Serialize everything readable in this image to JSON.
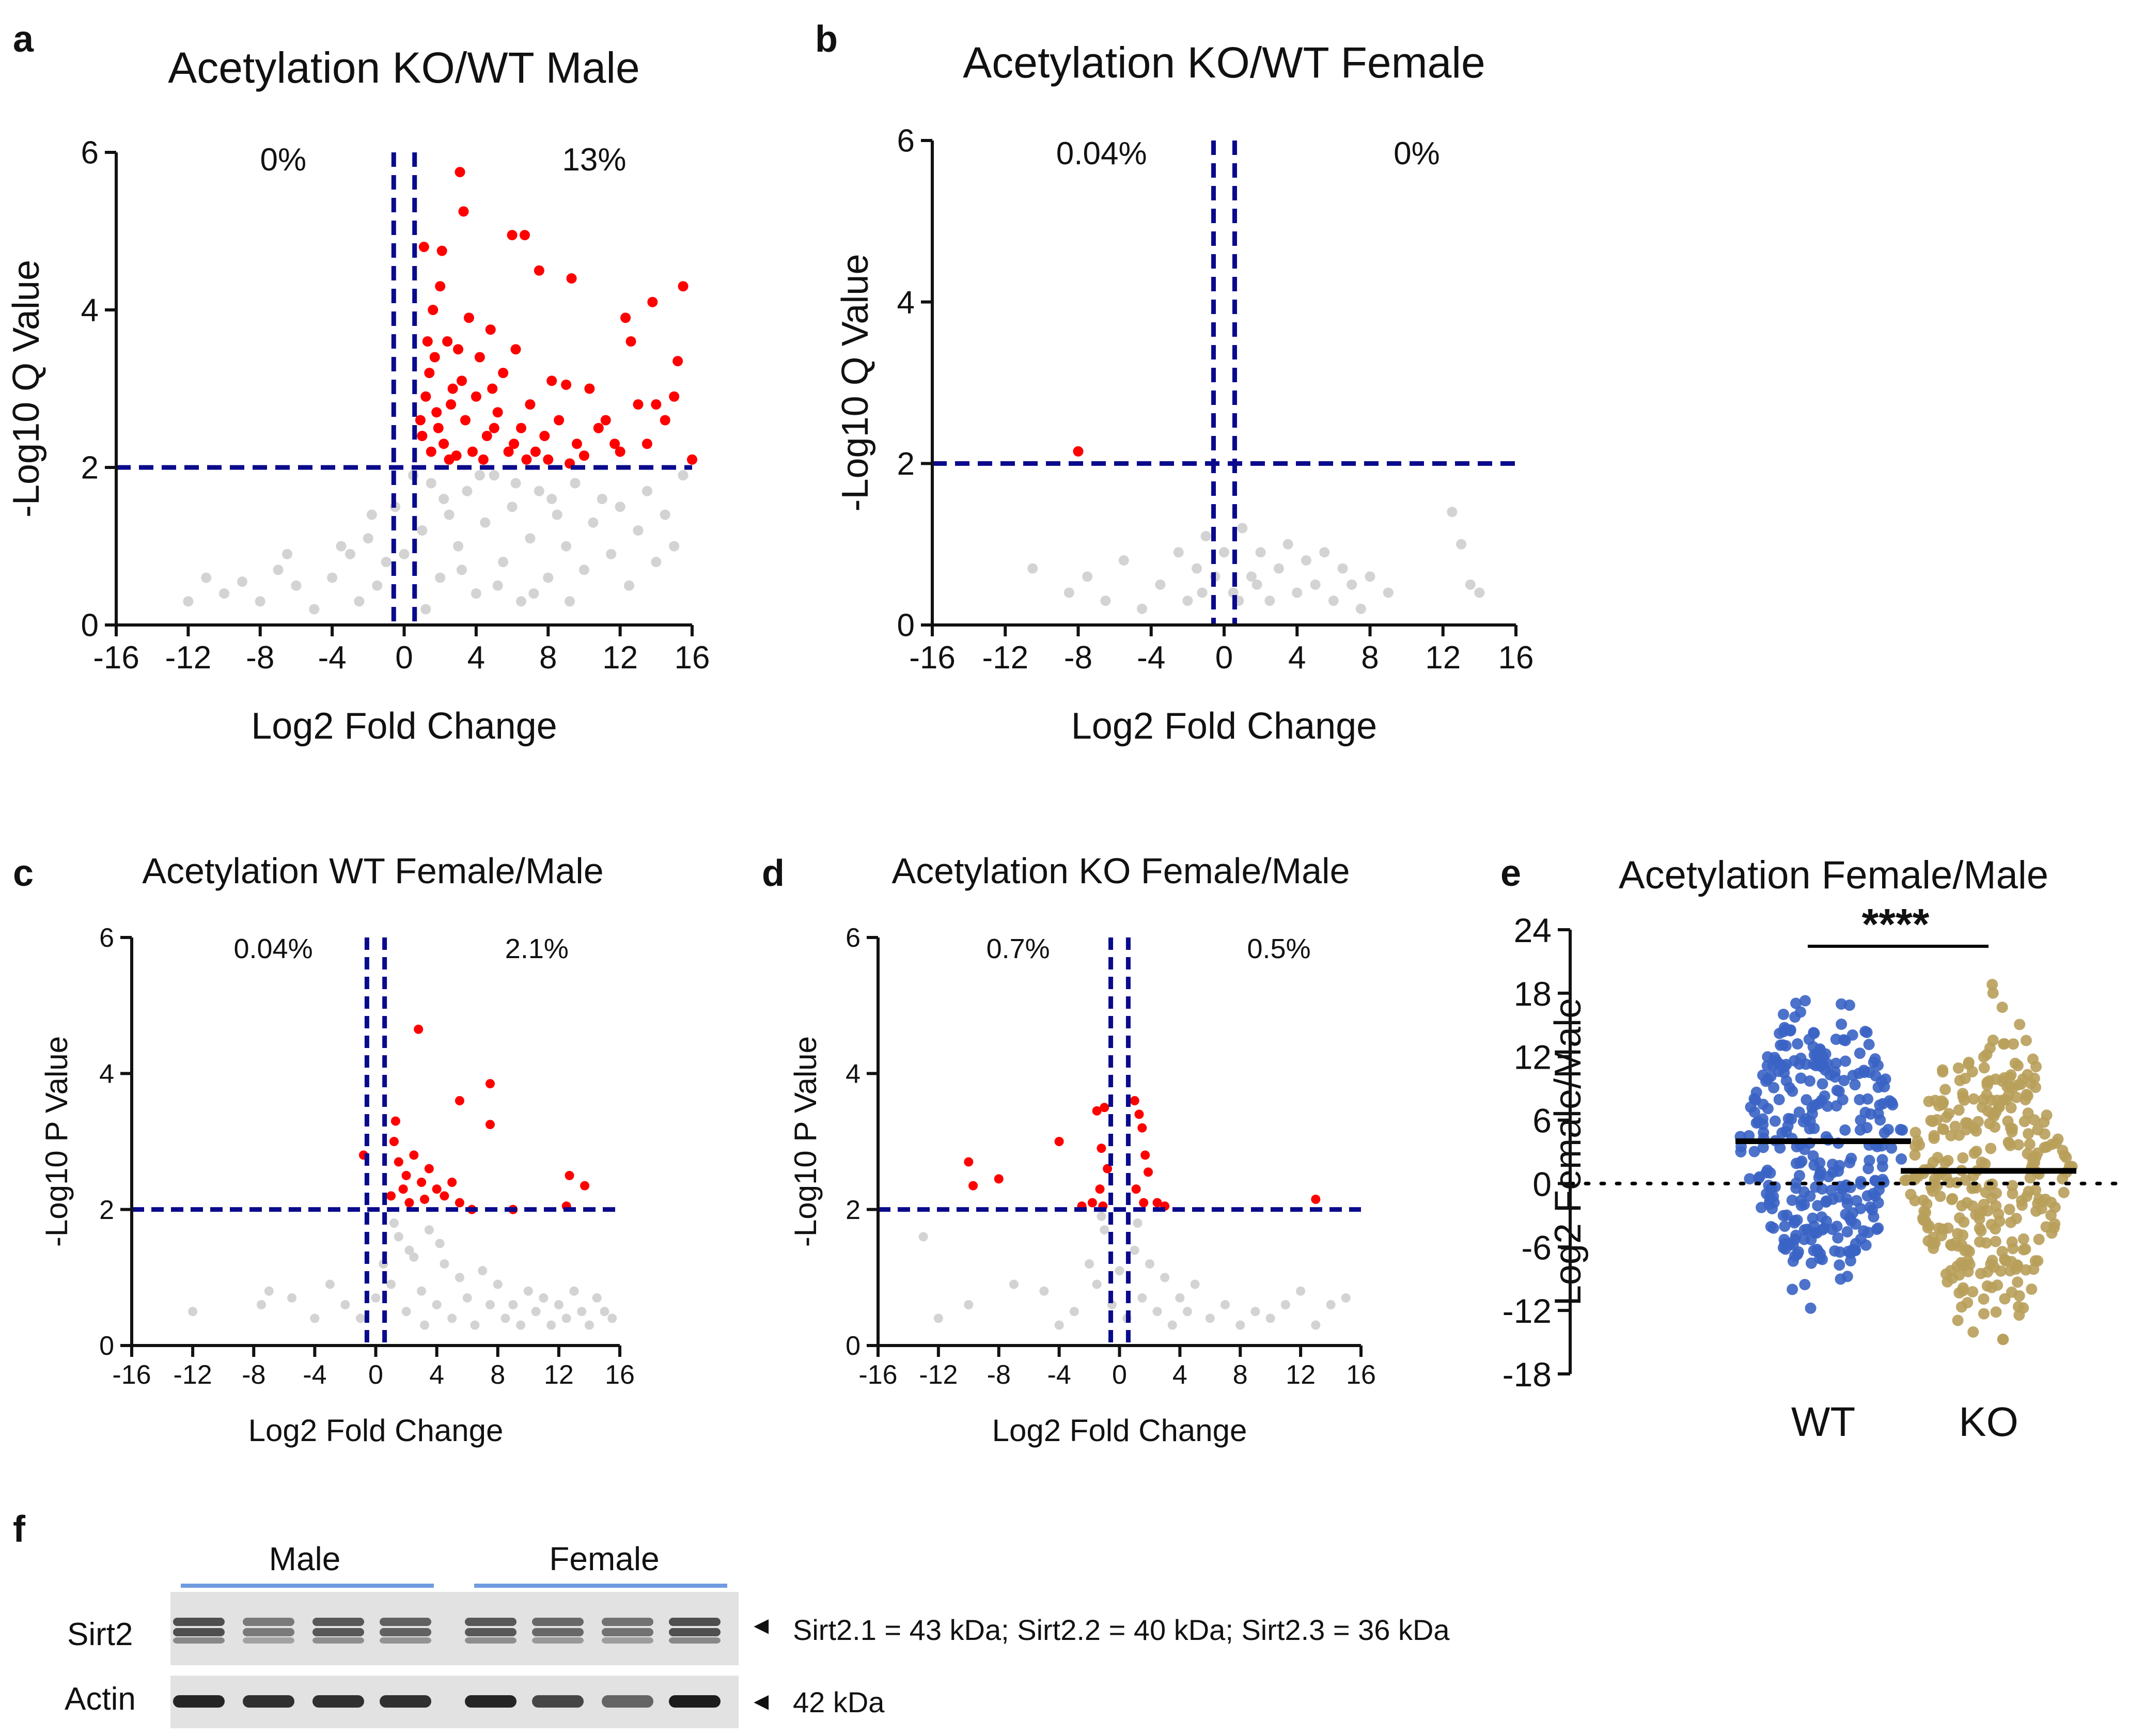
{
  "figure_title": "Acetylation volcano plots, female/male comparison and Sirt2 western blot",
  "colors": {
    "significant": "#ff0000",
    "nonsignificant": "#d3d3d3",
    "threshold": "#0a0a8c",
    "wt": "#3a63c4",
    "ko": "#b89f5a",
    "axis": "#111111"
  },
  "chart_data": [
    {
      "panel": "a",
      "type": "scatter",
      "title": "Acetylation KO/WT Male",
      "xlabel": "Log2 Fold Change",
      "ylabel": "-Log10 Q Value",
      "xlim": [
        -16,
        16
      ],
      "ylim": [
        0,
        6
      ],
      "xticks": [
        "-16",
        "-12",
        "-8",
        "-4",
        "0",
        "4",
        "8",
        "12",
        "16"
      ],
      "yticks": [
        "0",
        "2",
        "4",
        "6"
      ],
      "thresholds": {
        "x": [
          -0.58,
          0.58
        ],
        "y": 2
      },
      "pct_left": "0%",
      "pct_right": "13%",
      "significant_points": [
        [
          3.1,
          5.75
        ],
        [
          3.3,
          5.25
        ],
        [
          6.0,
          4.95
        ],
        [
          6.7,
          4.95
        ],
        [
          1.1,
          4.8
        ],
        [
          2.1,
          4.75
        ],
        [
          7.5,
          4.5
        ],
        [
          9.3,
          4.4
        ],
        [
          15.5,
          4.3
        ],
        [
          13.8,
          4.1
        ],
        [
          12.3,
          3.9
        ],
        [
          2.0,
          4.3
        ],
        [
          1.6,
          4.0
        ],
        [
          3.6,
          3.9
        ],
        [
          4.8,
          3.75
        ],
        [
          12.6,
          3.6
        ],
        [
          6.2,
          3.5
        ],
        [
          4.2,
          3.4
        ],
        [
          15.2,
          3.35
        ],
        [
          2.4,
          3.6
        ],
        [
          3.0,
          3.5
        ],
        [
          1.4,
          3.2
        ],
        [
          5.5,
          3.2
        ],
        [
          8.2,
          3.1
        ],
        [
          9.0,
          3.05
        ],
        [
          10.3,
          3.0
        ],
        [
          11.2,
          2.6
        ],
        [
          13.0,
          2.8
        ],
        [
          14.0,
          2.8
        ],
        [
          14.5,
          2.6
        ],
        [
          15.0,
          2.9
        ],
        [
          16.0,
          2.1
        ],
        [
          1.2,
          2.9
        ],
        [
          1.8,
          2.7
        ],
        [
          2.6,
          2.8
        ],
        [
          3.4,
          2.6
        ],
        [
          4.0,
          2.9
        ],
        [
          4.6,
          2.4
        ],
        [
          5.2,
          2.7
        ],
        [
          6.5,
          2.5
        ],
        [
          7.0,
          2.8
        ],
        [
          7.8,
          2.4
        ],
        [
          8.6,
          2.6
        ],
        [
          9.6,
          2.3
        ],
        [
          10.8,
          2.5
        ],
        [
          12.0,
          2.2
        ],
        [
          13.5,
          2.3
        ],
        [
          1.0,
          2.4
        ],
        [
          1.5,
          2.2
        ],
        [
          2.2,
          2.3
        ],
        [
          2.9,
          2.15
        ],
        [
          3.8,
          2.2
        ],
        [
          4.4,
          2.1
        ],
        [
          5.8,
          2.2
        ],
        [
          6.8,
          2.1
        ],
        [
          8.0,
          2.1
        ],
        [
          9.2,
          2.05
        ],
        [
          1.3,
          3.6
        ],
        [
          2.7,
          3.0
        ],
        [
          5.0,
          2.5
        ],
        [
          1.7,
          3.4
        ],
        [
          3.2,
          3.1
        ],
        [
          1.9,
          2.5
        ],
        [
          0.9,
          2.6
        ],
        [
          2.5,
          2.1
        ],
        [
          4.9,
          3.0
        ],
        [
          6.1,
          2.3
        ],
        [
          7.3,
          2.2
        ],
        [
          10.0,
          2.15
        ],
        [
          11.7,
          2.3
        ]
      ],
      "nonsignificant_points": [
        [
          -10.0,
          0.4
        ],
        [
          -9.0,
          0.55
        ],
        [
          -8.0,
          0.3
        ],
        [
          -7.0,
          0.7
        ],
        [
          -6.0,
          0.5
        ],
        [
          -5.0,
          0.2
        ],
        [
          -4.0,
          0.6
        ],
        [
          -3.0,
          0.9
        ],
        [
          -2.5,
          0.3
        ],
        [
          -2.0,
          1.1
        ],
        [
          -1.5,
          0.5
        ],
        [
          -1.0,
          0.8
        ],
        [
          -0.5,
          1.5
        ],
        [
          0.0,
          0.9
        ],
        [
          0.5,
          1.9
        ],
        [
          1.0,
          1.2
        ],
        [
          1.5,
          1.8
        ],
        [
          2.0,
          0.6
        ],
        [
          2.5,
          1.4
        ],
        [
          3.0,
          1.0
        ],
        [
          3.5,
          1.7
        ],
        [
          4.0,
          0.4
        ],
        [
          4.5,
          1.3
        ],
        [
          5.0,
          1.9
        ],
        [
          5.5,
          0.8
        ],
        [
          6.0,
          1.5
        ],
        [
          6.5,
          0.3
        ],
        [
          7.0,
          1.1
        ],
        [
          7.5,
          1.7
        ],
        [
          8.0,
          0.6
        ],
        [
          8.5,
          1.4
        ],
        [
          9.0,
          1.0
        ],
        [
          9.5,
          1.8
        ],
        [
          10.0,
          0.7
        ],
        [
          10.5,
          1.3
        ],
        [
          11.0,
          1.6
        ],
        [
          11.5,
          0.9
        ],
        [
          12.0,
          1.5
        ],
        [
          12.5,
          0.5
        ],
        [
          13.0,
          1.2
        ],
        [
          13.5,
          1.7
        ],
        [
          14.0,
          0.8
        ],
        [
          14.5,
          1.4
        ],
        [
          15.0,
          1.0
        ],
        [
          15.5,
          1.9
        ],
        [
          1.2,
          0.2
        ],
        [
          2.2,
          1.6
        ],
        [
          3.2,
          0.7
        ],
        [
          4.2,
          1.9
        ],
        [
          5.2,
          0.5
        ],
        [
          6.2,
          1.8
        ],
        [
          7.2,
          0.4
        ],
        [
          8.2,
          1.6
        ],
        [
          9.2,
          0.3
        ],
        [
          -1.8,
          1.4
        ],
        [
          -3.5,
          1.0
        ],
        [
          -6.5,
          0.9
        ],
        [
          -11.0,
          0.6
        ],
        [
          -12.0,
          0.3
        ]
      ]
    },
    {
      "panel": "b",
      "type": "scatter",
      "title": "Acetylation KO/WT Female",
      "xlabel": "Log2 Fold Change",
      "ylabel": "-Log10 Q Value",
      "xlim": [
        -16,
        16
      ],
      "ylim": [
        0,
        6
      ],
      "xticks": [
        "-16",
        "-12",
        "-8",
        "-4",
        "0",
        "4",
        "8",
        "12",
        "16"
      ],
      "yticks": [
        "0",
        "2",
        "4",
        "6"
      ],
      "thresholds": {
        "x": [
          -0.58,
          0.58
        ],
        "y": 2
      },
      "pct_left": "0.04%",
      "pct_right": "0%",
      "significant_points": [
        [
          -8.0,
          2.15
        ]
      ],
      "nonsignificant_points": [
        [
          -10.5,
          0.7
        ],
        [
          -8.5,
          0.4
        ],
        [
          -7.5,
          0.6
        ],
        [
          -6.5,
          0.3
        ],
        [
          -5.5,
          0.8
        ],
        [
          -4.5,
          0.2
        ],
        [
          -3.5,
          0.5
        ],
        [
          -2.5,
          0.9
        ],
        [
          -2.0,
          0.3
        ],
        [
          -1.5,
          0.7
        ],
        [
          -1.0,
          1.1
        ],
        [
          -0.5,
          0.6
        ],
        [
          0.0,
          0.9
        ],
        [
          0.5,
          0.4
        ],
        [
          1.0,
          1.2
        ],
        [
          1.5,
          0.6
        ],
        [
          2.0,
          0.9
        ],
        [
          2.5,
          0.3
        ],
        [
          3.0,
          0.7
        ],
        [
          3.5,
          1.0
        ],
        [
          4.0,
          0.4
        ],
        [
          4.5,
          0.8
        ],
        [
          5.0,
          0.5
        ],
        [
          5.5,
          0.9
        ],
        [
          6.0,
          0.3
        ],
        [
          6.5,
          0.7
        ],
        [
          7.0,
          0.5
        ],
        [
          7.5,
          0.2
        ],
        [
          8.0,
          0.6
        ],
        [
          9.0,
          0.4
        ],
        [
          12.5,
          1.4
        ],
        [
          13.0,
          1.0
        ],
        [
          13.5,
          0.5
        ],
        [
          14.0,
          0.4
        ],
        [
          -1.2,
          0.4
        ],
        [
          0.8,
          0.3
        ],
        [
          1.8,
          0.5
        ]
      ]
    },
    {
      "panel": "c",
      "type": "scatter",
      "title": "Acetylation WT Female/Male",
      "xlabel": "Log2 Fold Change",
      "ylabel": "-Log10 P Value",
      "xlim": [
        -16,
        16
      ],
      "ylim": [
        0,
        6
      ],
      "xticks": [
        "-16",
        "-12",
        "-8",
        "-4",
        "0",
        "4",
        "8",
        "12",
        "16"
      ],
      "yticks": [
        "0",
        "2",
        "4",
        "6"
      ],
      "thresholds": {
        "x": [
          -0.58,
          0.58
        ],
        "y": 2
      },
      "pct_left": "0.04%",
      "pct_right": "2.1%",
      "significant_points": [
        [
          2.8,
          4.65
        ],
        [
          7.5,
          3.85
        ],
        [
          5.5,
          3.6
        ],
        [
          7.5,
          3.25
        ],
        [
          12.7,
          2.5
        ],
        [
          13.7,
          2.35
        ],
        [
          1.2,
          3.0
        ],
        [
          1.5,
          2.7
        ],
        [
          2.0,
          2.5
        ],
        [
          2.5,
          2.8
        ],
        [
          3.0,
          2.4
        ],
        [
          3.5,
          2.6
        ],
        [
          4.0,
          2.3
        ],
        [
          4.5,
          2.2
        ],
        [
          5.0,
          2.4
        ],
        [
          5.5,
          2.1
        ],
        [
          1.0,
          2.2
        ],
        [
          1.8,
          2.3
        ],
        [
          2.2,
          2.1
        ],
        [
          3.2,
          2.15
        ],
        [
          -0.8,
          2.8
        ],
        [
          6.3,
          2.0
        ],
        [
          9.0,
          2.0
        ],
        [
          12.5,
          2.05
        ],
        [
          1.3,
          3.3
        ]
      ],
      "nonsignificant_points": [
        [
          -12.0,
          0.5
        ],
        [
          -7.5,
          0.6
        ],
        [
          -7.0,
          0.8
        ],
        [
          -5.5,
          0.7
        ],
        [
          -4.0,
          0.4
        ],
        [
          -3.0,
          0.9
        ],
        [
          -2.0,
          0.6
        ],
        [
          -1.0,
          0.4
        ],
        [
          0.0,
          0.7
        ],
        [
          0.5,
          1.2
        ],
        [
          1.0,
          0.9
        ],
        [
          1.5,
          1.6
        ],
        [
          2.0,
          0.5
        ],
        [
          2.5,
          1.3
        ],
        [
          3.0,
          0.8
        ],
        [
          3.5,
          1.7
        ],
        [
          4.0,
          0.6
        ],
        [
          4.5,
          1.2
        ],
        [
          5.0,
          0.4
        ],
        [
          5.5,
          1.0
        ],
        [
          6.0,
          0.7
        ],
        [
          6.5,
          0.3
        ],
        [
          7.0,
          1.1
        ],
        [
          7.5,
          0.6
        ],
        [
          8.0,
          0.9
        ],
        [
          8.5,
          0.4
        ],
        [
          9.0,
          0.6
        ],
        [
          9.5,
          0.3
        ],
        [
          10.0,
          0.8
        ],
        [
          10.5,
          0.5
        ],
        [
          11.0,
          0.7
        ],
        [
          11.5,
          0.3
        ],
        [
          12.0,
          0.6
        ],
        [
          12.5,
          0.4
        ],
        [
          13.0,
          0.8
        ],
        [
          13.5,
          0.5
        ],
        [
          14.0,
          0.3
        ],
        [
          14.5,
          0.7
        ],
        [
          15.0,
          0.5
        ],
        [
          15.5,
          0.4
        ],
        [
          1.2,
          1.8
        ],
        [
          2.2,
          1.4
        ],
        [
          3.2,
          0.3
        ],
        [
          4.2,
          1.5
        ]
      ]
    },
    {
      "panel": "d",
      "type": "scatter",
      "title": "Acetylation KO Female/Male",
      "xlabel": "Log2 Fold Change",
      "ylabel": "-Log10 P Value",
      "xlim": [
        -16,
        16
      ],
      "ylim": [
        0,
        6
      ],
      "xticks": [
        "-16",
        "-12",
        "-8",
        "-4",
        "0",
        "4",
        "8",
        "12",
        "16"
      ],
      "yticks": [
        "0",
        "2",
        "4",
        "6"
      ],
      "thresholds": {
        "x": [
          -0.58,
          0.58
        ],
        "y": 2
      },
      "pct_left": "0.7%",
      "pct_right": "0.5%",
      "significant_points": [
        [
          -10.0,
          2.7
        ],
        [
          -9.7,
          2.35
        ],
        [
          -8.0,
          2.45
        ],
        [
          -4.0,
          3.0
        ],
        [
          -1.5,
          3.45
        ],
        [
          -1.2,
          2.9
        ],
        [
          -1.0,
          3.5
        ],
        [
          -0.8,
          2.6
        ],
        [
          -1.3,
          2.3
        ],
        [
          -1.8,
          2.1
        ],
        [
          -2.5,
          2.05
        ],
        [
          1.0,
          3.6
        ],
        [
          1.3,
          3.4
        ],
        [
          1.5,
          3.2
        ],
        [
          1.7,
          2.8
        ],
        [
          1.9,
          2.55
        ],
        [
          1.1,
          2.3
        ],
        [
          1.6,
          2.1
        ],
        [
          2.5,
          2.1
        ],
        [
          3.0,
          2.05
        ],
        [
          13.0,
          2.15
        ],
        [
          -1.1,
          2.05
        ]
      ],
      "nonsignificant_points": [
        [
          -13.0,
          1.6
        ],
        [
          -12.0,
          0.4
        ],
        [
          -10.0,
          0.6
        ],
        [
          -7.0,
          0.9
        ],
        [
          -5.0,
          0.8
        ],
        [
          -4.0,
          0.3
        ],
        [
          -3.0,
          0.5
        ],
        [
          -2.0,
          1.2
        ],
        [
          -1.5,
          0.9
        ],
        [
          -1.0,
          1.7
        ],
        [
          -0.5,
          0.6
        ],
        [
          0.0,
          1.1
        ],
        [
          0.5,
          0.4
        ],
        [
          1.0,
          1.4
        ],
        [
          1.5,
          0.7
        ],
        [
          2.0,
          1.2
        ],
        [
          2.5,
          0.5
        ],
        [
          3.0,
          1.0
        ],
        [
          3.5,
          0.3
        ],
        [
          4.0,
          0.7
        ],
        [
          4.5,
          0.5
        ],
        [
          5.0,
          0.9
        ],
        [
          6.0,
          0.4
        ],
        [
          7.0,
          0.6
        ],
        [
          8.0,
          0.3
        ],
        [
          9.0,
          0.5
        ],
        [
          10.0,
          0.4
        ],
        [
          11.0,
          0.6
        ],
        [
          12.0,
          0.8
        ],
        [
          13.0,
          0.3
        ],
        [
          14.0,
          0.6
        ],
        [
          15.0,
          0.7
        ],
        [
          -1.2,
          1.9
        ],
        [
          1.2,
          1.8
        ]
      ]
    },
    {
      "panel": "e",
      "type": "scatter",
      "title": "Acetylation Female/Male",
      "xlabel": "",
      "ylabel": "Log2 Female/Male",
      "categories": [
        "WT",
        "KO"
      ],
      "ylim": [
        -18,
        24
      ],
      "yticks": [
        "-18",
        "-12",
        "-6",
        "0",
        "6",
        "12",
        "18",
        "24"
      ],
      "medians": [
        4.0,
        1.2
      ],
      "ranges": [
        [
          -12,
          18
        ],
        [
          -15,
          20
        ]
      ],
      "significance": "****"
    }
  ],
  "blot": {
    "panel": "f",
    "groups": [
      "Male",
      "Female"
    ],
    "rows": [
      {
        "label": "Sirt2",
        "annotation": "Sirt2.1 = 43 kDa; Sirt2.2 = 40 kDa; Sirt2.3 = 36 kDa"
      },
      {
        "label": "Actin",
        "annotation": "42 kDa"
      }
    ],
    "arrow": "◄"
  }
}
